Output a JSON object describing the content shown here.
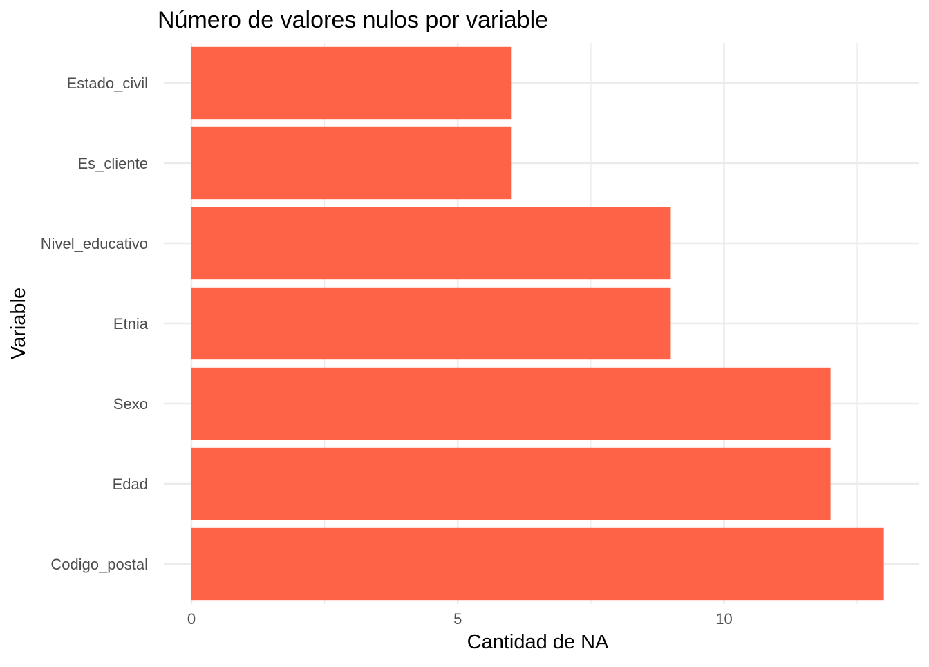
{
  "chart_data": {
    "type": "bar",
    "orientation": "horizontal",
    "title": "Número de valores nulos por variable",
    "xlabel": "Cantidad de NA",
    "ylabel": "Variable",
    "categories": [
      "Estado_civil",
      "Es_cliente",
      "Nivel_educativo",
      "Etnia",
      "Sexo",
      "Edad",
      "Codigo_postal"
    ],
    "values": [
      6,
      6,
      9,
      9,
      12,
      12,
      13
    ],
    "xlim": [
      0,
      13.65
    ],
    "x_ticks": [
      0,
      5,
      10
    ],
    "x_tick_labels": [
      "0",
      "5",
      "10"
    ],
    "grid": true,
    "bar_color": "#ff6347",
    "grid_color": "#ebebeb",
    "background": "#ffffff"
  }
}
